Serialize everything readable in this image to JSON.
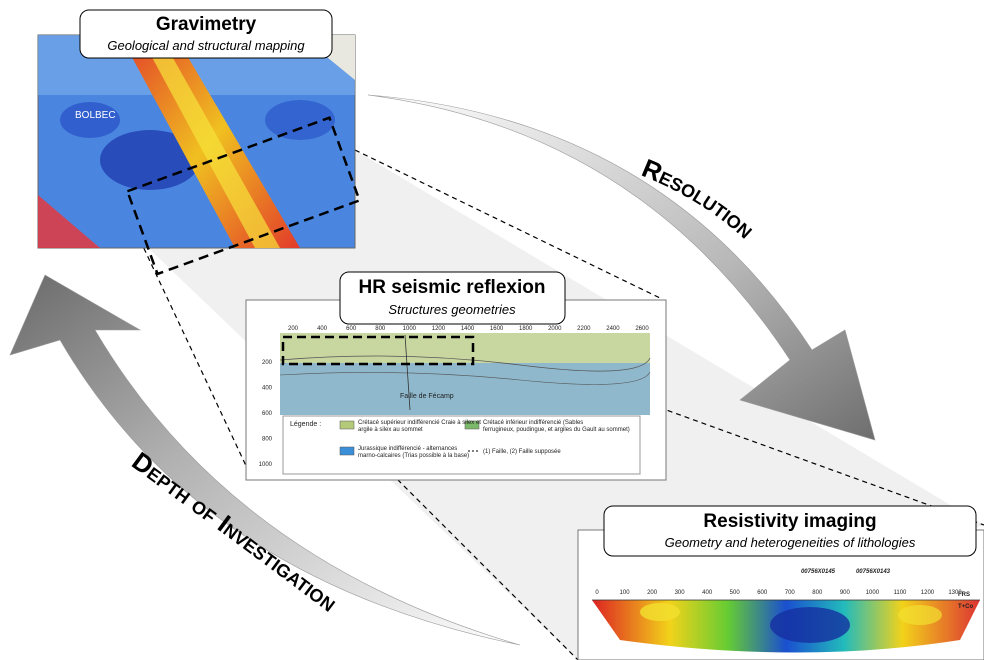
{
  "gravimetry": {
    "title": "Gravimetry",
    "subtitle": "Geological and structural mapping",
    "place": "BOLBEC"
  },
  "seismic": {
    "title": "HR seismic reflexion",
    "subtitle": "Structures geometries",
    "top_ticks": [
      200,
      400,
      600,
      800,
      1000,
      1200,
      1400,
      1600,
      1800,
      2000,
      2200,
      2400,
      2600
    ],
    "left_ticks": [
      200,
      400,
      600,
      800,
      1000
    ],
    "fault": "Faille de Fécamp",
    "legend": {
      "heading": "Légende :",
      "items": [
        "Crétacé supérieur indifférencié Craie à silex et argile à silex au sommet",
        "Crétacé inférieur indifférencié (Sables ferrugineux, poudingue, et argiles du Gault au sommet)",
        "Jurassique indifférencié - alternances marno-calcaires (Trias possible à la base)",
        "(1) Faille, (2) Faille supposée"
      ]
    }
  },
  "resistivity": {
    "title": "Resistivity imaging",
    "subtitle": "Geometry and heterogeneities of lithologies",
    "ticks": [
      0,
      100,
      200,
      300,
      400,
      500,
      600,
      700,
      800,
      900,
      1000,
      1100,
      1200,
      1300
    ],
    "wells": [
      "00756X0145",
      "00756X0143"
    ],
    "side_labels": [
      "FRS",
      "T+Co"
    ]
  },
  "arrows": {
    "resolution": "Resolution",
    "depth": "Depth of Investigation"
  }
}
